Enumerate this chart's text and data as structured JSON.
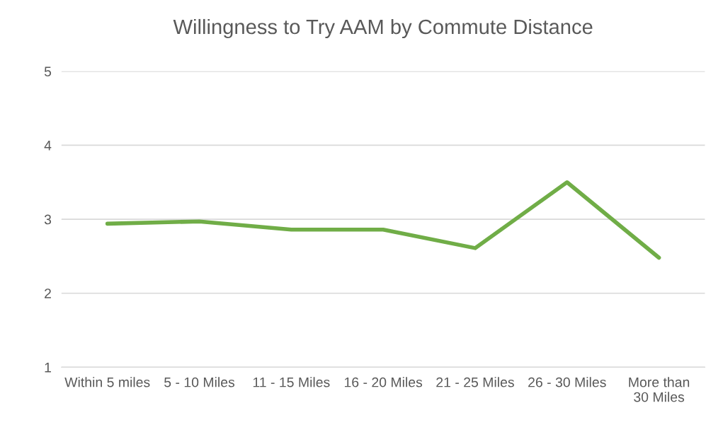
{
  "chart_data": {
    "type": "line",
    "title": "Willingness to Try AAM by Commute Distance",
    "categories": [
      "Within 5 miles",
      "5 - 10 Miles",
      "11 - 15 Miles",
      "16 - 20 Miles",
      "21 - 25 Miles",
      "26 - 30 Miles",
      "More than 30 Miles"
    ],
    "series": [
      {
        "color": "#70ad47",
        "values": [
          2.94,
          2.97,
          2.86,
          2.86,
          2.61,
          3.5,
          2.48
        ]
      }
    ],
    "ylim": [
      1,
      5
    ],
    "yticks": [
      1,
      2,
      3,
      4,
      5
    ],
    "grid": "y",
    "marker": "none",
    "line_style": "solid"
  }
}
